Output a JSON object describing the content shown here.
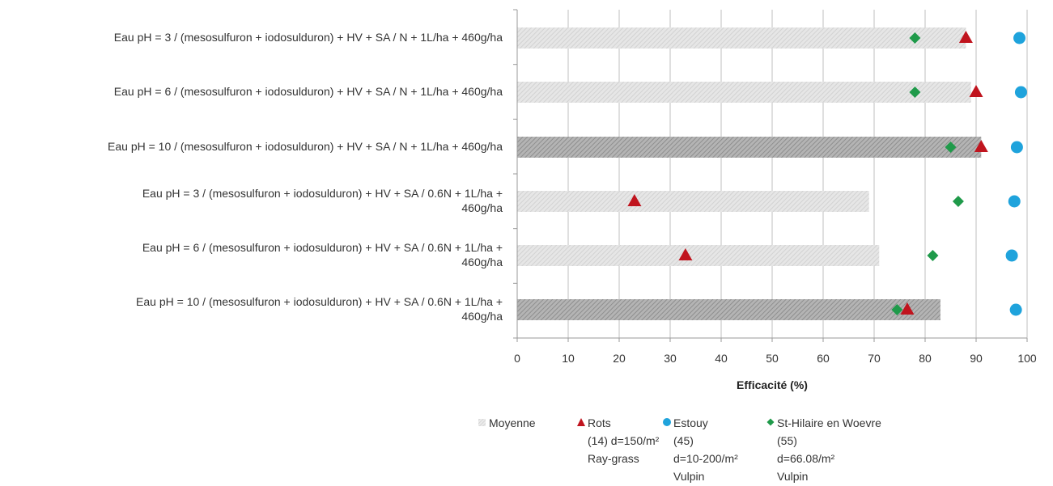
{
  "chart_data": {
    "type": "bar",
    "orientation": "horizontal",
    "categories": [
      "Eau pH = 3 / (mesosulfuron + iodosulduron) + HV + SA / N + 1L/ha + 460g/ha",
      "Eau pH = 6 / (mesosulfuron + iodosulduron) + HV + SA / N + 1L/ha + 460g/ha",
      "Eau pH = 10 / (mesosulfuron + iodosulduron) + HV + SA / N + 1L/ha + 460g/ha",
      "Eau pH = 3 / (mesosulfuron + iodosulduron) + HV + SA / 0.6N + 1L/ha + 460g/ha",
      "Eau pH = 6 / (mesosulfuron + iodosulduron) + HV + SA / 0.6N + 1L/ha + 460g/ha",
      "Eau pH = 10 / (mesosulfuron + iodosulduron) + HV + SA / 0.6N + 1L/ha + 460g/ha"
    ],
    "category_lines": [
      [
        "Eau pH = 3 / (mesosulfuron + iodosulduron) + HV + SA / N + 1L/ha + 460g/ha"
      ],
      [
        "Eau pH = 6 / (mesosulfuron + iodosulduron) + HV + SA / N + 1L/ha + 460g/ha"
      ],
      [
        "Eau pH = 10 / (mesosulfuron + iodosulduron) + HV + SA / N + 1L/ha + 460g/ha"
      ],
      [
        "Eau pH = 3 / (mesosulfuron + iodosulduron) + HV + SA / 0.6N + 1L/ha +",
        "460g/ha"
      ],
      [
        "Eau pH = 6 / (mesosulfuron + iodosulduron) + HV + SA / 0.6N + 1L/ha +",
        "460g/ha"
      ],
      [
        "Eau pH = 10 / (mesosulfuron + iodosulduron) + HV + SA / 0.6N + 1L/ha +",
        "460g/ha"
      ]
    ],
    "series": [
      {
        "name": "Moyenne",
        "kind": "bar",
        "values": [
          88,
          89,
          91,
          69,
          71,
          83
        ]
      },
      {
        "name": "Rots (14) d=150/m² Ray-grass",
        "kind": "triangle",
        "values": [
          88,
          90,
          91,
          23,
          33,
          76.5
        ]
      },
      {
        "name": "Estouy (45) d=10-200/m² Vulpin",
        "kind": "circle",
        "values": [
          98.5,
          98.8,
          98,
          97.5,
          97,
          97.8
        ]
      },
      {
        "name": "St-Hilaire en Woevre (55) d=66.08/m² Vulpin",
        "kind": "diamond",
        "values": [
          78,
          78,
          85,
          86.5,
          81.5,
          74.5
        ]
      }
    ],
    "bar_shades": [
      "light",
      "light",
      "dark",
      "light",
      "light",
      "dark"
    ],
    "xlabel": "Efficacité (%)",
    "xlim": [
      0,
      100
    ],
    "xticks": [
      "0",
      "10",
      "20",
      "30",
      "40",
      "50",
      "60",
      "70",
      "80",
      "90",
      "100"
    ],
    "grid": "vertical",
    "legend_position": "bottom",
    "colors": {
      "bar_light": "#e4e4e4",
      "bar_dark": "#a9a9a9",
      "triangle": "#c0141e",
      "circle": "#1fa3dc",
      "diamond": "#1f9a4a",
      "grid": "#bfbfbf"
    }
  },
  "legend": [
    {
      "symbol": "bar-swatch",
      "lines": [
        "Moyenne"
      ]
    },
    {
      "symbol": "triangle",
      "lines": [
        "Rots",
        "(14) d=150/m²",
        "Ray-grass"
      ]
    },
    {
      "symbol": "circle",
      "lines": [
        "Estouy",
        "(45)",
        "d=10-200/m²",
        "Vulpin"
      ]
    },
    {
      "symbol": "diamond",
      "lines": [
        "St-Hilaire en Woevre",
        "(55)",
        "d=66.08/m²",
        "Vulpin"
      ]
    }
  ]
}
